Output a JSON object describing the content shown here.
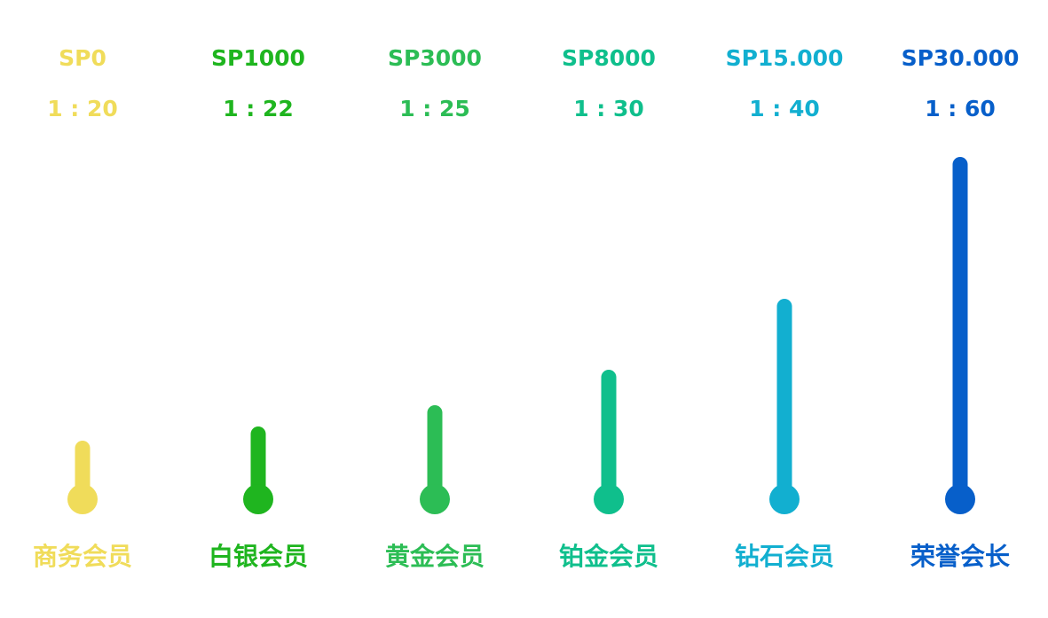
{
  "chart_data": {
    "type": "bar",
    "categories": [
      "商务会员",
      "白银会员",
      "黄金会员",
      "铂金会员",
      "钻石会员",
      "荣誉会长"
    ],
    "thresholds": [
      "SP0",
      "SP1000",
      "SP3000",
      "SP8000",
      "SP15.000",
      "SP30.000"
    ],
    "ratios": [
      "1 : 20",
      "1 : 22",
      "1 : 25",
      "1 : 30",
      "1 : 40",
      "1 : 60"
    ],
    "values": [
      20,
      22,
      25,
      30,
      40,
      60
    ],
    "colors": [
      "#f0dc5a",
      "#1fb51f",
      "#2cbd55",
      "#0fbf8c",
      "#12afd0",
      "#075fca"
    ],
    "ylim": [
      0,
      60
    ],
    "grid": false,
    "legend": "none"
  }
}
